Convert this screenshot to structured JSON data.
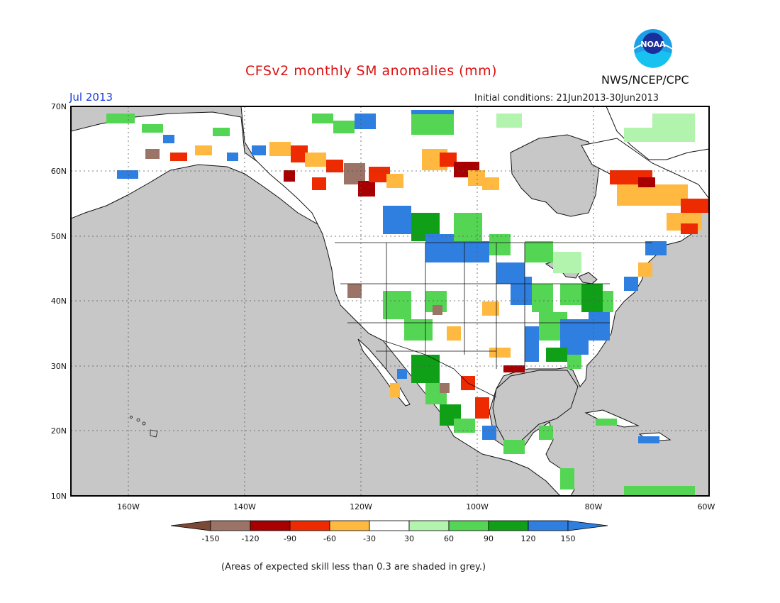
{
  "header": {
    "title": "CFSv2 monthly SM anomalies (mm)",
    "month": "Jul 2013",
    "initial_conditions": "Initial conditions: 21Jun2013-30Jun2013",
    "agency": "NWS/NCEP/CPC",
    "logo_text": "NOAA"
  },
  "axes": {
    "lat_labels": [
      "70N",
      "60N",
      "50N",
      "40N",
      "30N",
      "20N",
      "10N"
    ],
    "lon_labels": [
      "160W",
      "140W",
      "120W",
      "100W",
      "80W",
      "60W"
    ]
  },
  "legend": {
    "ticks": [
      "-150",
      "-120",
      "-90",
      "-60",
      "-30",
      "30",
      "60",
      "90",
      "120",
      "150"
    ],
    "colors": [
      "#7a4a36",
      "#9b7467",
      "#a80000",
      "#ee2a00",
      "#ffb840",
      "#ffffff",
      "#b2f3ae",
      "#54d654",
      "#10a018",
      "#2f7fe0",
      "#2f7fe0"
    ]
  },
  "footnote": "(Areas of expected skill less than 0.3 are shaded in grey.)",
  "colors": {
    "no_skill_grey": "#c7c7c7",
    "title_red": "#dd1111",
    "month_blue": "#1a3fdd"
  }
}
